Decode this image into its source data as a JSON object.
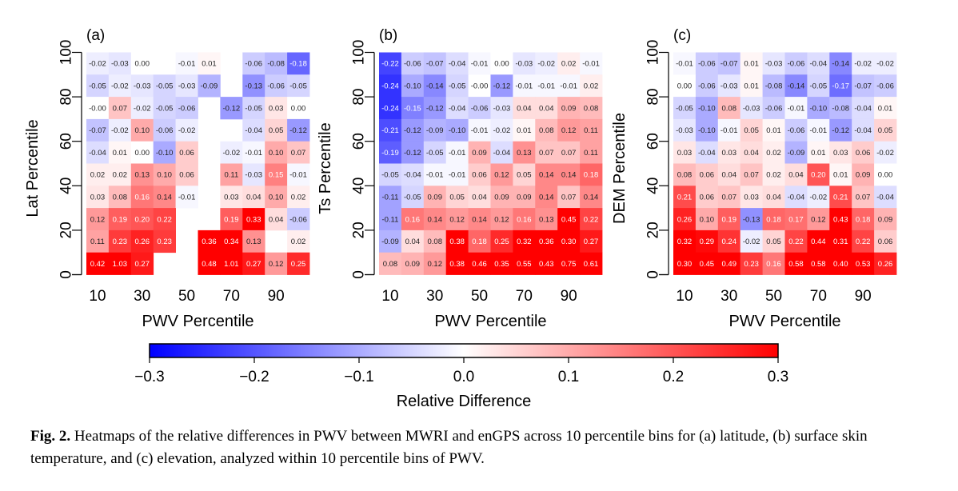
{
  "chart_data": [
    {
      "type": "heatmap",
      "panel_label": "(a)",
      "xlabel": "PWV Percentile",
      "ylabel": "Lat Percentile",
      "x_ticks": [
        "10",
        "30",
        "50",
        "70",
        "90"
      ],
      "y_ticks": [
        "0",
        "20",
        "40",
        "60",
        "80",
        "100"
      ],
      "rows_top_to_bottom": [
        [
          -0.02,
          -0.03,
          0.0,
          null,
          -0.01,
          0.01,
          null,
          -0.06,
          -0.08,
          -0.18
        ],
        [
          -0.05,
          -0.02,
          -0.03,
          -0.05,
          -0.03,
          -0.09,
          null,
          -0.13,
          -0.06,
          -0.05
        ],
        [
          -0.0,
          0.07,
          -0.02,
          -0.05,
          -0.06,
          null,
          -0.12,
          -0.05,
          0.03,
          0.0
        ],
        [
          -0.07,
          -0.02,
          0.1,
          -0.06,
          -0.02,
          null,
          null,
          -0.04,
          0.05,
          -0.12
        ],
        [
          -0.04,
          0.01,
          0.0,
          -0.1,
          0.06,
          null,
          -0.02,
          -0.01,
          0.1,
          0.07
        ],
        [
          0.02,
          0.02,
          0.13,
          0.1,
          0.06,
          null,
          0.11,
          -0.03,
          0.15,
          -0.01
        ],
        [
          0.03,
          0.08,
          0.16,
          0.14,
          -0.01,
          null,
          0.03,
          0.04,
          0.1,
          0.02
        ],
        [
          0.12,
          0.19,
          0.2,
          0.22,
          null,
          null,
          0.19,
          0.33,
          0.04,
          -0.06
        ],
        [
          0.11,
          0.23,
          0.26,
          0.23,
          null,
          0.36,
          0.34,
          0.13,
          null,
          0.02
        ],
        [
          0.42,
          1.03,
          0.27,
          null,
          null,
          0.48,
          1.01,
          0.27,
          0.12,
          0.25
        ]
      ],
      "labels_top_to_bottom": [
        [
          "-0.02",
          "-0.03",
          "0.00",
          "",
          "-0.01",
          "0.01",
          "",
          "-0.06",
          "-0.08",
          "-0.18"
        ],
        [
          "-0.05",
          "-0.02",
          "-0.03",
          "-0.05",
          "-0.03",
          "-0.09",
          "",
          "-0.13",
          "-0.06",
          "-0.05"
        ],
        [
          "-0.00",
          "0.07",
          "-0.02",
          "-0.05",
          "-0.06",
          "",
          "-0.12",
          "-0.05",
          "0.03",
          "0.00"
        ],
        [
          "-0.07",
          "-0.02",
          "0.10",
          "-0.06",
          "-0.02",
          "",
          "",
          "-0.04",
          "0.05",
          "-0.12"
        ],
        [
          "-0.04",
          "0.01",
          "0.00",
          "-0.10",
          "0.06",
          "",
          "-0.02",
          "-0.01",
          "0.10",
          "0.07"
        ],
        [
          "0.02",
          "0.02",
          "0.13",
          "0.10",
          "0.06",
          "",
          "0.11",
          "-0.03",
          "0.15",
          "-0.01"
        ],
        [
          "0.03",
          "0.08",
          "0.16",
          "0.14",
          "-0.01",
          "",
          "0.03",
          "0.04",
          "0.10",
          "0.02"
        ],
        [
          "0.12",
          "0.19",
          "0.20",
          "0.22",
          "",
          "",
          "0.19",
          "0.33",
          "0.04",
          "-0.06"
        ],
        [
          "0.11",
          "0.23",
          "0.26",
          "0.23",
          "",
          "0.36",
          "0.34",
          "0.13",
          "",
          "0.02"
        ],
        [
          "0.42",
          "1.03",
          "0.27",
          "",
          "",
          "0.48",
          "1.01",
          "0.27",
          "0.12",
          "0.25"
        ]
      ]
    },
    {
      "type": "heatmap",
      "panel_label": "(b)",
      "xlabel": "PWV Percentile",
      "ylabel": "Ts Percentile",
      "x_ticks": [
        "10",
        "30",
        "50",
        "70",
        "90"
      ],
      "y_ticks": [
        "0",
        "20",
        "40",
        "60",
        "80",
        "100"
      ],
      "rows_top_to_bottom": [
        [
          -0.22,
          -0.06,
          -0.07,
          -0.04,
          -0.01,
          0.0,
          -0.03,
          -0.02,
          0.02,
          -0.01
        ],
        [
          -0.24,
          -0.1,
          -0.14,
          -0.05,
          -0.0,
          -0.12,
          -0.01,
          -0.01,
          -0.01,
          0.02
        ],
        [
          -0.24,
          -0.15,
          -0.12,
          -0.04,
          -0.06,
          -0.03,
          0.04,
          0.04,
          0.09,
          0.08
        ],
        [
          -0.21,
          -0.12,
          -0.09,
          -0.1,
          -0.01,
          -0.02,
          0.01,
          0.08,
          0.12,
          0.11
        ],
        [
          -0.19,
          -0.12,
          -0.05,
          -0.01,
          0.09,
          -0.04,
          0.13,
          0.07,
          0.07,
          0.11
        ],
        [
          -0.05,
          -0.04,
          -0.01,
          -0.01,
          0.06,
          0.12,
          0.05,
          0.14,
          0.14,
          0.18
        ],
        [
          -0.11,
          -0.05,
          0.09,
          0.05,
          0.04,
          0.09,
          0.09,
          0.14,
          0.07,
          0.14
        ],
        [
          -0.11,
          0.16,
          0.14,
          0.12,
          0.14,
          0.12,
          0.16,
          0.13,
          0.45,
          0.22
        ],
        [
          -0.09,
          0.04,
          0.08,
          0.38,
          0.18,
          0.25,
          0.32,
          0.36,
          0.3,
          0.27
        ],
        [
          0.08,
          0.09,
          0.12,
          0.38,
          0.46,
          0.35,
          0.55,
          0.43,
          0.75,
          0.61
        ]
      ],
      "labels_top_to_bottom": [
        [
          "-0.22",
          "-0.06",
          "-0.07",
          "-0.04",
          "-0.01",
          "0.00",
          "-0.03",
          "-0.02",
          "0.02",
          "-0.01"
        ],
        [
          "-0.24",
          "-0.10",
          "-0.14",
          "-0.05",
          "-0.00",
          "-0.12",
          "-0.01",
          "-0.01",
          "-0.01",
          "0.02"
        ],
        [
          "-0.24",
          "-0.15",
          "-0.12",
          "-0.04",
          "-0.06",
          "-0.03",
          "0.04",
          "0.04",
          "0.09",
          "0.08"
        ],
        [
          "-0.21",
          "-0.12",
          "-0.09",
          "-0.10",
          "-0.01",
          "-0.02",
          "0.01",
          "0.08",
          "0.12",
          "0.11"
        ],
        [
          "-0.19",
          "-0.12",
          "-0.05",
          "-0.01",
          "0.09",
          "-0.04",
          "0.13",
          "0.07",
          "0.07",
          "0.11"
        ],
        [
          "-0.05",
          "-0.04",
          "-0.01",
          "-0.01",
          "0.06",
          "0.12",
          "0.05",
          "0.14",
          "0.14",
          "0.18"
        ],
        [
          "-0.11",
          "-0.05",
          "0.09",
          "0.05",
          "0.04",
          "0.09",
          "0.09",
          "0.14",
          "0.07",
          "0.14"
        ],
        [
          "-0.11",
          "0.16",
          "0.14",
          "0.12",
          "0.14",
          "0.12",
          "0.16",
          "0.13",
          "0.45",
          "0.22"
        ],
        [
          "-0.09",
          "0.04",
          "0.08",
          "0.38",
          "0.18",
          "0.25",
          "0.32",
          "0.36",
          "0.30",
          "0.27"
        ],
        [
          "0.08",
          "0.09",
          "0.12",
          "0.38",
          "0.46",
          "0.35",
          "0.55",
          "0.43",
          "0.75",
          "0.61"
        ]
      ]
    },
    {
      "type": "heatmap",
      "panel_label": "(c)",
      "xlabel": "PWV Percentile",
      "ylabel": "DEM Percentile",
      "x_ticks": [
        "10",
        "30",
        "50",
        "70",
        "90"
      ],
      "y_ticks": [
        "0",
        "20",
        "40",
        "60",
        "80",
        "100"
      ],
      "rows_top_to_bottom": [
        [
          -0.01,
          -0.06,
          -0.07,
          0.01,
          -0.03,
          -0.06,
          -0.04,
          -0.14,
          -0.02,
          -0.02
        ],
        [
          0.0,
          -0.06,
          -0.03,
          0.01,
          -0.08,
          -0.14,
          -0.05,
          -0.17,
          -0.07,
          -0.06
        ],
        [
          -0.05,
          -0.1,
          0.08,
          -0.03,
          -0.06,
          -0.01,
          -0.1,
          -0.08,
          -0.04,
          0.01
        ],
        [
          -0.03,
          -0.1,
          -0.01,
          0.05,
          0.01,
          -0.06,
          -0.01,
          -0.12,
          -0.04,
          0.05
        ],
        [
          0.03,
          -0.04,
          0.03,
          0.04,
          0.02,
          -0.09,
          0.01,
          0.03,
          0.06,
          -0.02
        ],
        [
          0.08,
          0.06,
          0.04,
          0.07,
          0.02,
          0.04,
          0.2,
          0.01,
          0.09,
          0.0
        ],
        [
          0.21,
          0.06,
          0.07,
          0.03,
          0.04,
          -0.04,
          -0.02,
          0.21,
          0.07,
          -0.04
        ],
        [
          0.26,
          0.1,
          0.19,
          -0.13,
          0.18,
          0.17,
          0.12,
          0.43,
          0.18,
          0.09
        ],
        [
          0.32,
          0.29,
          0.24,
          -0.02,
          0.05,
          0.22,
          0.44,
          0.31,
          0.22,
          0.06
        ],
        [
          0.3,
          0.45,
          0.49,
          0.23,
          0.16,
          0.58,
          0.58,
          0.4,
          0.53,
          0.26
        ]
      ],
      "labels_top_to_bottom": [
        [
          "-0.01",
          "-0.06",
          "-0.07",
          "0.01",
          "-0.03",
          "-0.06",
          "-0.04",
          "-0.14",
          "-0.02",
          "-0.02"
        ],
        [
          "0.00",
          "-0.06",
          "-0.03",
          "0.01",
          "-0.08",
          "-0.14",
          "-0.05",
          "-0.17",
          "-0.07",
          "-0.06"
        ],
        [
          "-0.05",
          "-0.10",
          "0.08",
          "-0.03",
          "-0.06",
          "-0.01",
          "-0.10",
          "-0.08",
          "-0.04",
          "0.01"
        ],
        [
          "-0.03",
          "-0.10",
          "-0.01",
          "0.05",
          "0.01",
          "-0.06",
          "-0.01",
          "-0.12",
          "-0.04",
          "0.05"
        ],
        [
          "0.03",
          "-0.04",
          "0.03",
          "0.04",
          "0.02",
          "-0.09",
          "0.01",
          "0.03",
          "0.06",
          "-0.02"
        ],
        [
          "0.08",
          "0.06",
          "0.04",
          "0.07",
          "0.02",
          "0.04",
          "0.20",
          "0.01",
          "0.09",
          "0.00"
        ],
        [
          "0.21",
          "0.06",
          "0.07",
          "0.03",
          "0.04",
          "-0.04",
          "-0.02",
          "0.21",
          "0.07",
          "-0.04"
        ],
        [
          "0.26",
          "0.10",
          "0.19",
          "-0.13",
          "0.18",
          "0.17",
          "0.12",
          "0.43",
          "0.18",
          "0.09"
        ],
        [
          "0.32",
          "0.29",
          "0.24",
          "-0.02",
          "0.05",
          "0.22",
          "0.44",
          "0.31",
          "0.22",
          "0.06"
        ],
        [
          "0.30",
          "0.45",
          "0.49",
          "0.23",
          "0.16",
          "0.58",
          "0.58",
          "0.40",
          "0.53",
          "0.26"
        ]
      ]
    }
  ],
  "colorbar": {
    "label": "Relative Difference",
    "vmin": -0.3,
    "vmax": 0.3,
    "tick_labels": [
      "−0.3",
      "−0.2",
      "−0.1",
      "0.0",
      "0.1",
      "0.2",
      "0.3"
    ],
    "colors": {
      "low": "#0000ff",
      "mid": "#ffffff",
      "high": "#ff0000"
    }
  },
  "caption": {
    "label": "Fig. 2.",
    "text": " Heatmaps of the relative differences in PWV between MWRI and enGPS across 10 percentile bins for (a) latitude, (b) surface skin temperature, and (c) elevation, analyzed within 10 percentile bins of PWV."
  }
}
